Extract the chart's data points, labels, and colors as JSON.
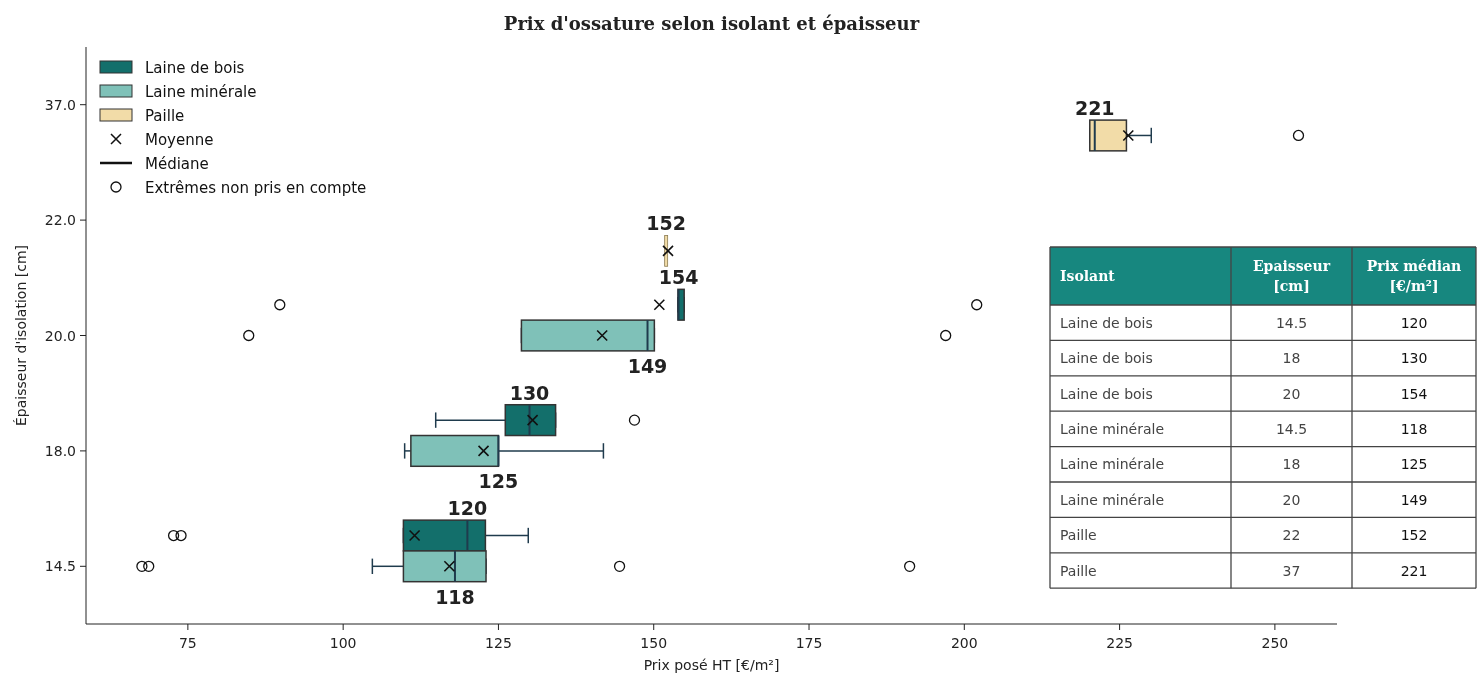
{
  "chart_data": [
    {
      "type": "box",
      "orientation": "horizontal",
      "title": "Prix d'ossature selon isolant et épaisseur",
      "xlabel": "Prix posé HT [€/m²]",
      "ylabel": "Épaisseur d'isolation [cm]",
      "categories": [
        "37.0",
        "22.0",
        "20.0",
        "18.0",
        "14.5"
      ],
      "xlim": [
        58.6,
        260
      ],
      "xticks": [
        75,
        100,
        125,
        150,
        175,
        200,
        225,
        250
      ],
      "legend": "top left",
      "grid": false,
      "data_labels": true,
      "annotations": [
        "Moyenne",
        "Médiane",
        "Extrêmes non pris en compte"
      ],
      "series": [
        {
          "name": "Laine de bois",
          "color": "#136f6b",
          "boxes": [
            null,
            null,
            {
              "low": 153.9,
              "q1": 153.9,
              "median": 154,
              "q3": 154.9,
              "high": 154.9,
              "mean": 150.9,
              "outliers": [
                89.8,
                202
              ]
            },
            {
              "low": 114.9,
              "q1": 126.1,
              "median": 130,
              "q3": 134.2,
              "high": 134.2,
              "mean": 130.5,
              "outliers": [
                146.9
              ]
            },
            {
              "low": 109.7,
              "q1": 109.7,
              "median": 120,
              "q3": 122.9,
              "high": 129.8,
              "mean": 111.5,
              "outliers": [
                72.7,
                73.9
              ]
            }
          ]
        },
        {
          "name": "Laine minérale",
          "color": "#7fc1b8",
          "boxes": [
            null,
            null,
            {
              "low": 128.7,
              "q1": 128.7,
              "median": 149,
              "q3": 150.1,
              "high": 150.1,
              "mean": 141.7,
              "outliers": [
                84.8,
                197
              ]
            },
            {
              "low": 109.9,
              "q1": 110.9,
              "median": 125,
              "q3": 125,
              "high": 141.9,
              "mean": 122.6
            },
            {
              "low": 104.7,
              "q1": 109.7,
              "median": 118,
              "q3": 123,
              "high": 123,
              "mean": 117.1,
              "outliers": [
                67.6,
                68.7,
                144.5,
                191.2
              ]
            }
          ]
        },
        {
          "name": "Paille",
          "color": "#f2dca8",
          "boxes": [
            {
              "low": 220.2,
              "q1": 220.2,
              "median": 221,
              "q3": 226.1,
              "high": 230.1,
              "mean": 226.4,
              "outliers": [
                253.8
              ]
            },
            {
              "low": 152,
              "q1": 152,
              "median": 152,
              "q3": 152,
              "high": 152,
              "mean": 152.3
            },
            null,
            null,
            null
          ]
        }
      ]
    },
    {
      "type": "other",
      "categories": [
        "Isolant",
        "Epaisseur [cm]",
        "Prix médian [€/m²]"
      ],
      "color": "#17877f",
      "cell_labels": [
        [
          "Laine de bois",
          "14.5",
          "120"
        ],
        [
          "Laine de bois",
          "18",
          "130"
        ],
        [
          "Laine de bois",
          "20",
          "154"
        ],
        [
          "Laine minérale",
          "14.5",
          "118"
        ],
        [
          "Laine minérale",
          "18",
          "125"
        ],
        [
          "Laine minérale",
          "20",
          "149"
        ],
        [
          "Paille",
          "22",
          "152"
        ],
        [
          "Paille",
          "37",
          "221"
        ]
      ]
    }
  ]
}
